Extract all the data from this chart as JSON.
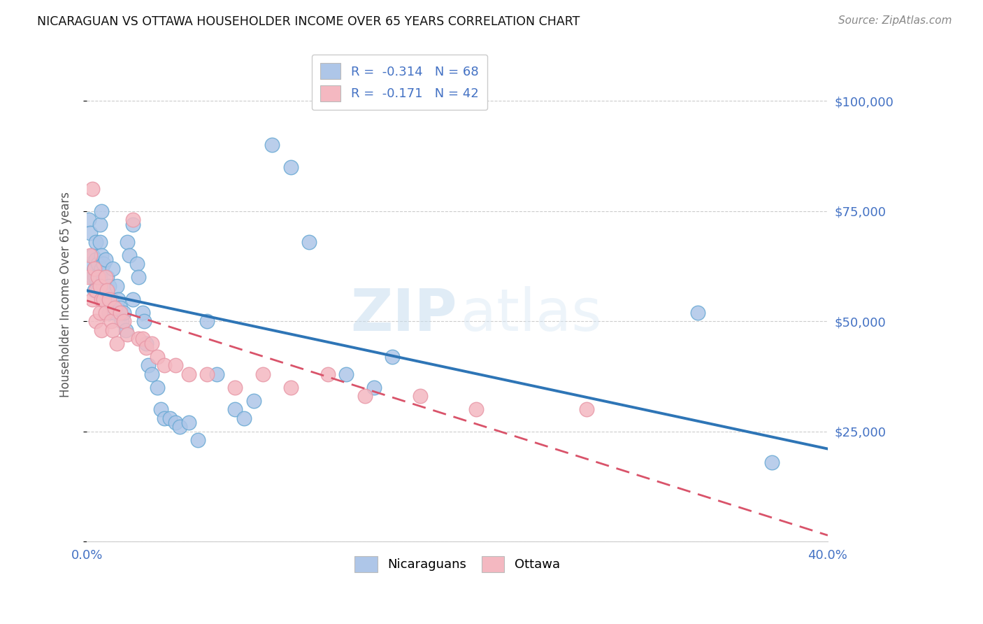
{
  "title": "NICARAGUAN VS OTTAWA HOUSEHOLDER INCOME OVER 65 YEARS CORRELATION CHART",
  "source": "Source: ZipAtlas.com",
  "ylabel": "Householder Income Over 65 years",
  "y_ticks": [
    0,
    25000,
    50000,
    75000,
    100000
  ],
  "x_range": [
    0.0,
    0.4
  ],
  "y_range": [
    0,
    112000
  ],
  "legend_r1": "R = ",
  "legend_r1_val": "-0.314",
  "legend_n1": "   N = ",
  "legend_n1_val": "68",
  "legend_r2": "R =  ",
  "legend_r2_val": "-0.171",
  "legend_n2": "   N = ",
  "legend_n2_val": "42",
  "legend_color1": "#aec6e8",
  "legend_color2": "#f4b8c1",
  "line1_color": "#2e75b6",
  "line2_color": "#d9536a",
  "watermark_zip": "ZIP",
  "watermark_atlas": "atlas",
  "background_color": "#ffffff",
  "grid_color": "#cccccc",
  "scatter1_color": "#aec6e8",
  "scatter2_color": "#f4b8c1",
  "scatter1_edge": "#6aaad4",
  "scatter2_edge": "#e899a8",
  "right_label_color": "#4472c4",
  "axis_label_color": "#555555",
  "nic_x": [
    0.001,
    0.002,
    0.002,
    0.003,
    0.003,
    0.004,
    0.004,
    0.004,
    0.005,
    0.005,
    0.005,
    0.006,
    0.006,
    0.007,
    0.007,
    0.007,
    0.008,
    0.008,
    0.008,
    0.009,
    0.009,
    0.01,
    0.01,
    0.011,
    0.011,
    0.012,
    0.012,
    0.013,
    0.014,
    0.015,
    0.016,
    0.017,
    0.018,
    0.019,
    0.02,
    0.021,
    0.022,
    0.023,
    0.025,
    0.025,
    0.027,
    0.028,
    0.03,
    0.031,
    0.032,
    0.033,
    0.035,
    0.038,
    0.04,
    0.042,
    0.045,
    0.048,
    0.05,
    0.055,
    0.06,
    0.065,
    0.07,
    0.08,
    0.085,
    0.09,
    0.1,
    0.11,
    0.12,
    0.14,
    0.155,
    0.165,
    0.33,
    0.37
  ],
  "nic_y": [
    73000,
    63000,
    70000,
    65000,
    60000,
    62000,
    60000,
    57000,
    68000,
    64000,
    60000,
    63000,
    57000,
    72000,
    68000,
    60000,
    75000,
    65000,
    62000,
    63000,
    58000,
    64000,
    55000,
    60000,
    55000,
    58000,
    52000,
    55000,
    62000,
    52000,
    58000,
    55000,
    53000,
    50000,
    52000,
    48000,
    68000,
    65000,
    72000,
    55000,
    63000,
    60000,
    52000,
    50000,
    45000,
    40000,
    38000,
    35000,
    30000,
    28000,
    28000,
    27000,
    26000,
    27000,
    23000,
    50000,
    38000,
    30000,
    28000,
    32000,
    90000,
    85000,
    68000,
    38000,
    35000,
    42000,
    52000,
    18000
  ],
  "ott_x": [
    0.001,
    0.002,
    0.003,
    0.003,
    0.004,
    0.005,
    0.005,
    0.006,
    0.007,
    0.007,
    0.008,
    0.008,
    0.009,
    0.01,
    0.01,
    0.011,
    0.012,
    0.013,
    0.014,
    0.015,
    0.016,
    0.018,
    0.02,
    0.022,
    0.025,
    0.028,
    0.03,
    0.032,
    0.035,
    0.038,
    0.042,
    0.048,
    0.055,
    0.065,
    0.08,
    0.095,
    0.11,
    0.13,
    0.15,
    0.18,
    0.21,
    0.27
  ],
  "ott_y": [
    60000,
    65000,
    80000,
    55000,
    62000,
    57000,
    50000,
    60000,
    58000,
    52000,
    55000,
    48000,
    55000,
    60000,
    52000,
    57000,
    55000,
    50000,
    48000,
    53000,
    45000,
    52000,
    50000,
    47000,
    73000,
    46000,
    46000,
    44000,
    45000,
    42000,
    40000,
    40000,
    38000,
    38000,
    35000,
    38000,
    35000,
    38000,
    33000,
    33000,
    30000,
    30000
  ]
}
